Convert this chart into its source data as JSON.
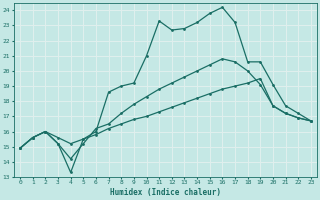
{
  "xlabel": "Humidex (Indice chaleur)",
  "ylabel": "",
  "xlim": [
    -0.5,
    23.5
  ],
  "ylim": [
    13,
    24.5
  ],
  "yticks": [
    13,
    14,
    15,
    16,
    17,
    18,
    19,
    20,
    21,
    22,
    23,
    24
  ],
  "xticks": [
    0,
    1,
    2,
    3,
    4,
    5,
    6,
    7,
    8,
    9,
    10,
    11,
    12,
    13,
    14,
    15,
    16,
    17,
    18,
    19,
    20,
    21,
    22,
    23
  ],
  "bg_color": "#c5e8e5",
  "line_color": "#1a6e65",
  "grid_color": "#e0f0ee",
  "line1_y": [
    14.9,
    15.6,
    16.0,
    15.2,
    13.3,
    15.5,
    16.0,
    18.6,
    19.0,
    19.2,
    21.0,
    23.3,
    22.7,
    22.8,
    23.2,
    23.8,
    24.2,
    23.2,
    20.6,
    20.6,
    19.1,
    17.7,
    17.2,
    16.7
  ],
  "line2_y": [
    14.9,
    15.6,
    16.0,
    15.2,
    14.2,
    15.2,
    16.2,
    16.5,
    17.2,
    17.8,
    18.3,
    18.8,
    19.2,
    19.6,
    20.0,
    20.4,
    20.8,
    20.6,
    20.0,
    19.1,
    17.7,
    17.2,
    16.9,
    16.7
  ],
  "line3_y": [
    14.9,
    15.6,
    16.0,
    15.6,
    15.2,
    15.5,
    15.8,
    16.2,
    16.5,
    16.8,
    17.0,
    17.3,
    17.6,
    17.9,
    18.2,
    18.5,
    18.8,
    19.0,
    19.2,
    19.5,
    17.7,
    17.2,
    16.9,
    16.7
  ]
}
